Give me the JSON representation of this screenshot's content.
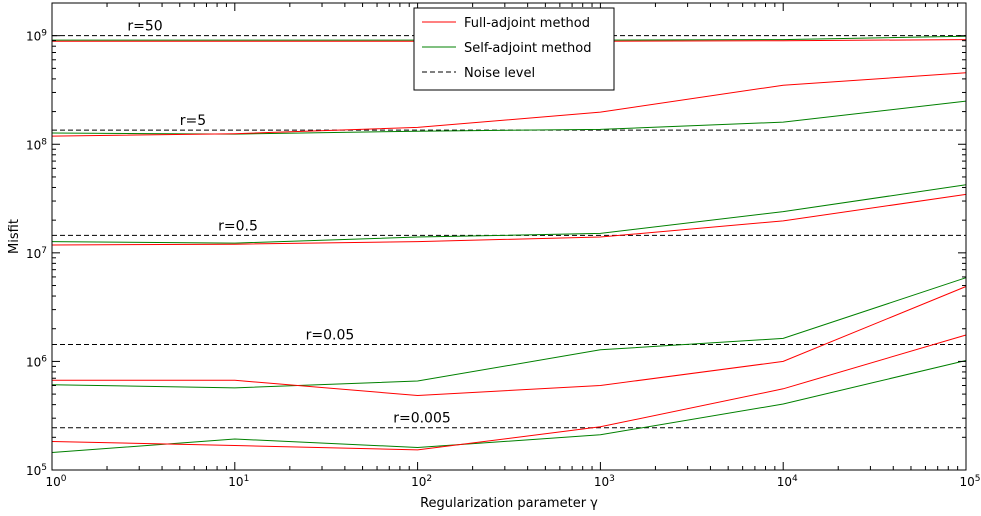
{
  "chart_data": {
    "type": "line",
    "title": "",
    "xlabel": "Regularization parameter γ",
    "ylabel": "Misfit",
    "xscale": "log",
    "yscale": "log",
    "xlim": [
      1,
      100000
    ],
    "ylim": [
      100000,
      2000000000
    ],
    "x": [
      1,
      10,
      100,
      1000,
      10000,
      100000
    ],
    "x_tick_labels": [
      {
        "value": 1,
        "base": "10",
        "exp": "0"
      },
      {
        "value": 10,
        "base": "10",
        "exp": "1"
      },
      {
        "value": 100,
        "base": "10",
        "exp": "2"
      },
      {
        "value": 1000,
        "base": "10",
        "exp": "3"
      },
      {
        "value": 10000,
        "base": "10",
        "exp": "4"
      },
      {
        "value": 100000,
        "base": "10",
        "exp": "5"
      }
    ],
    "y_tick_labels": [
      {
        "value": 100000,
        "base": "10",
        "exp": "5"
      },
      {
        "value": 1000000,
        "base": "10",
        "exp": "6"
      },
      {
        "value": 10000000,
        "base": "10",
        "exp": "7"
      },
      {
        "value": 100000000,
        "base": "10",
        "exp": "8"
      },
      {
        "value": 1000000000,
        "base": "10",
        "exp": "9"
      }
    ],
    "legend": {
      "position": "upper-center",
      "entries": [
        {
          "label": "Full-adjoint method",
          "color": "#ff0000",
          "style": "solid"
        },
        {
          "label": "Self-adjoint method",
          "color": "#008000",
          "style": "solid"
        },
        {
          "label": "Noise level",
          "color": "#000000",
          "style": "dashed"
        }
      ]
    },
    "groups": [
      {
        "label": "r=50",
        "noise_level": 1000000000,
        "full_adjoint": [
          890000000,
          890000000,
          890000000,
          890000000,
          900000000,
          920000000
        ],
        "self_adjoint": [
          910000000,
          910000000,
          910000000,
          910000000,
          920000000,
          990000000
        ]
      },
      {
        "label": "r=5",
        "noise_level": 135000000,
        "full_adjoint": [
          119000000,
          125000000,
          143000000,
          198000000,
          350000000,
          455000000
        ],
        "self_adjoint": [
          127000000,
          124000000,
          132000000,
          137000000,
          160000000,
          250000000
        ]
      },
      {
        "label": "r=0.5",
        "noise_level": 14500000,
        "full_adjoint": [
          11800000,
          12000000,
          12700000,
          14000000,
          19700000,
          34500000
        ],
        "self_adjoint": [
          12700000,
          12300000,
          14000000,
          15100000,
          24000000,
          42300000
        ]
      },
      {
        "label": "r=0.05",
        "noise_level": 1430000,
        "full_adjoint": [
          670000,
          670000,
          485000,
          600000,
          1000000,
          4900000
        ],
        "self_adjoint": [
          610000,
          570000,
          660000,
          1280000,
          1630000,
          5900000
        ]
      },
      {
        "label": "r=0.005",
        "noise_level": 245000,
        "full_adjoint": [
          183000,
          168000,
          153000,
          250000,
          560000,
          1750000
        ],
        "self_adjoint": [
          145000,
          193000,
          161000,
          211000,
          405000,
          1020000
        ]
      }
    ]
  }
}
